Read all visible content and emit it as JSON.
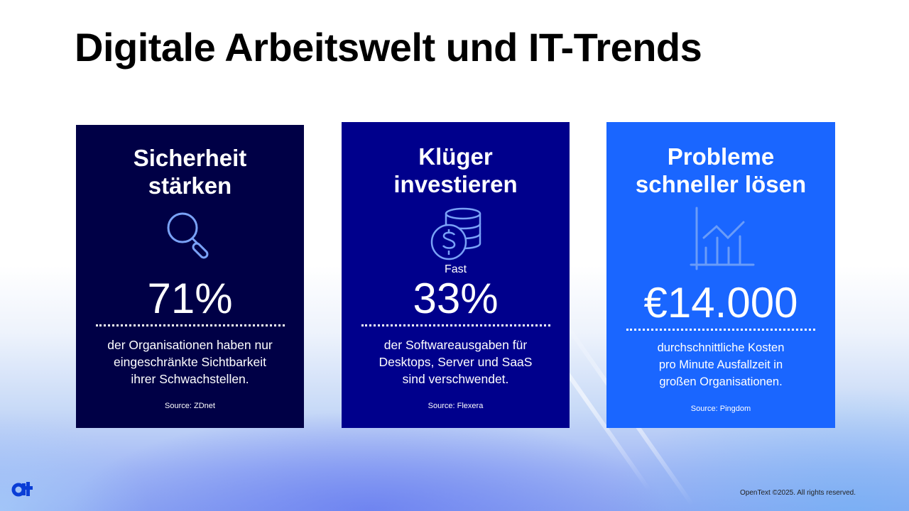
{
  "title": "Digitale Arbeitswelt und IT-Trends",
  "cards": [
    {
      "title_line1": "Sicherheit",
      "title_line2": "stärken",
      "icon": "magnifier-icon",
      "prefix": "",
      "stat": "71%",
      "desc1": "der Organisationen haben nur",
      "desc2": "eingeschränkte Sichtbarkeit",
      "desc3": "ihrer Schwachstellen.",
      "source": "Source: ZDnet",
      "color": "#000046"
    },
    {
      "title_line1": "Klüger",
      "title_line2": "investieren",
      "icon": "dollar-coins-icon",
      "prefix": "Fast",
      "stat": "33%",
      "desc1": "der Softwareausgaben für",
      "desc2": "Desktops, Server und SaaS",
      "desc3": "sind verschwendet.",
      "source": "Source: Flexera",
      "color": "#00008c"
    },
    {
      "title_line1": "Probleme",
      "title_line2": "schneller lösen",
      "icon": "bar-line-chart-icon",
      "prefix": "",
      "stat": "€14.000",
      "desc1": "durchschnittliche Kosten",
      "desc2": "pro Minute Ausfallzeit in",
      "desc3": "großen Organisationen.",
      "source": "Source: Pingdom",
      "color": "#1a66ff"
    }
  ],
  "footer": {
    "copyright": "OpenText ©2025. All rights reserved.",
    "logo_text": "ot"
  }
}
